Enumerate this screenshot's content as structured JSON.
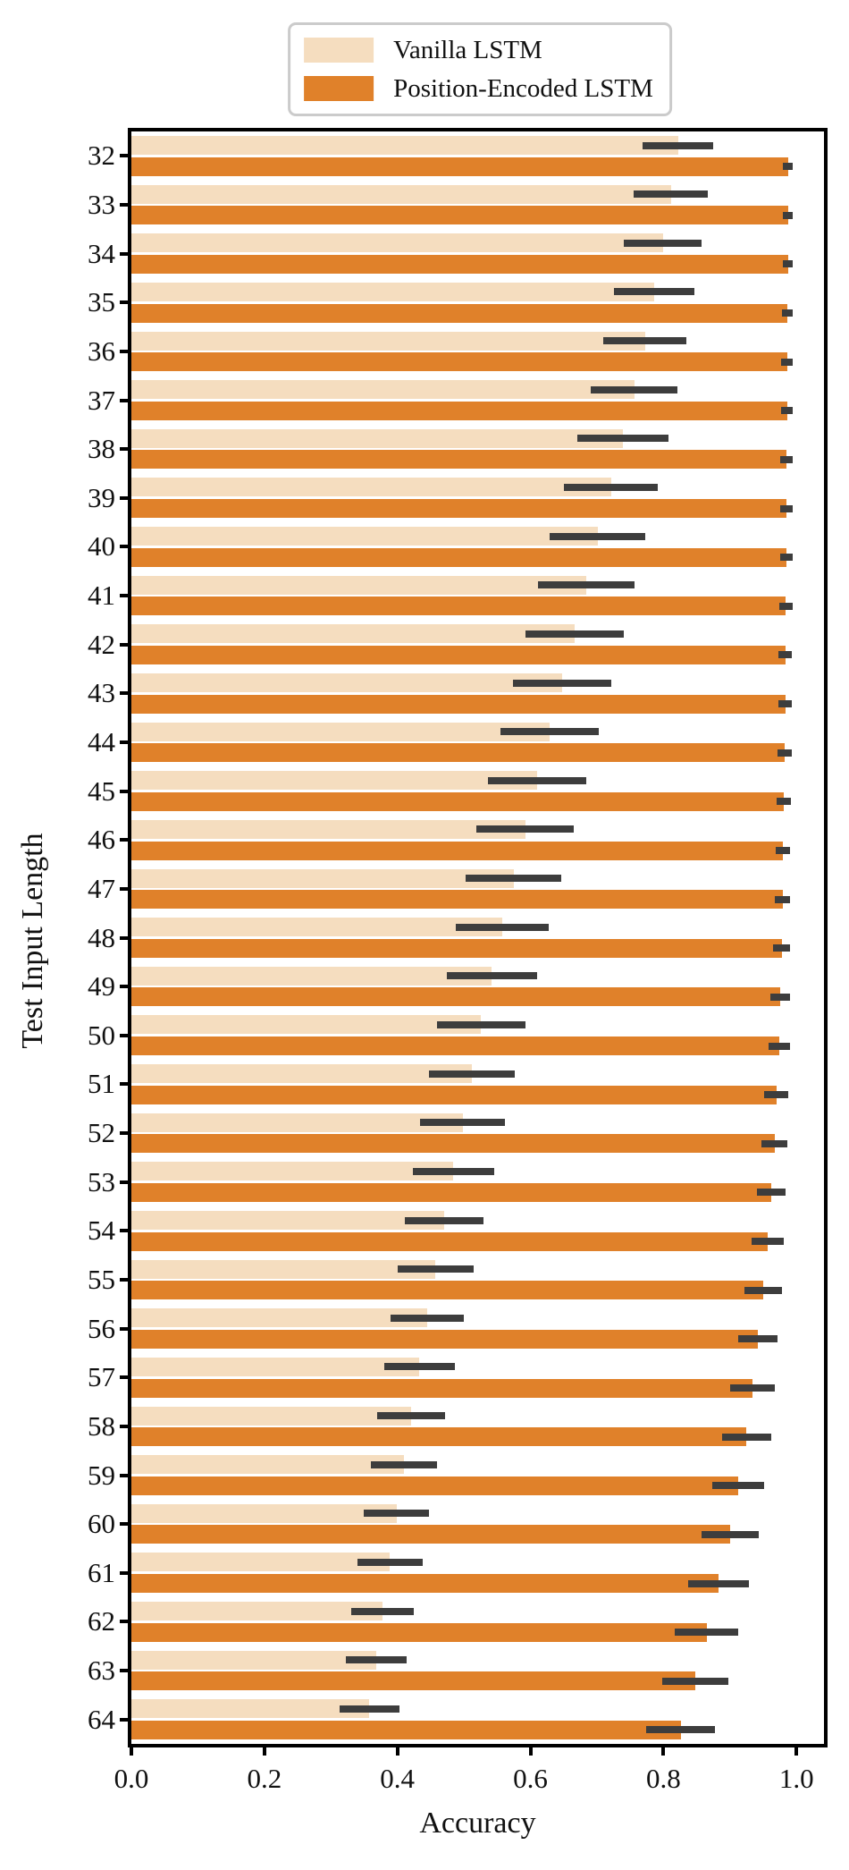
{
  "figure": {
    "background": "#ffffff",
    "spine_color": "#000000"
  },
  "chart_data": {
    "type": "bar",
    "orientation": "horizontal",
    "title": "",
    "xlabel": "Accuracy",
    "ylabel": "Test Input Length",
    "xlim": [
      0,
      1.0414
    ],
    "xticks": [
      0.0,
      0.2,
      0.4,
      0.6,
      0.8,
      1.0
    ],
    "xtick_labels": [
      "0.0",
      "0.2",
      "0.4",
      "0.6",
      "0.8",
      "1.0"
    ],
    "grid": false,
    "legend_position": "top-center-above-axes",
    "error_color": "#3d3d3d",
    "categories": [
      "32",
      "33",
      "34",
      "35",
      "36",
      "37",
      "38",
      "39",
      "40",
      "41",
      "42",
      "43",
      "44",
      "45",
      "46",
      "47",
      "48",
      "49",
      "50",
      "51",
      "52",
      "53",
      "54",
      "55",
      "56",
      "57",
      "58",
      "59",
      "60",
      "61",
      "62",
      "63",
      "64"
    ],
    "series": [
      {
        "name": "Vanilla LSTM",
        "color": "#f5ddbf",
        "values": [
          0.822,
          0.811,
          0.799,
          0.786,
          0.772,
          0.756,
          0.739,
          0.721,
          0.701,
          0.684,
          0.666,
          0.648,
          0.629,
          0.61,
          0.592,
          0.575,
          0.558,
          0.542,
          0.526,
          0.512,
          0.498,
          0.484,
          0.47,
          0.457,
          0.445,
          0.433,
          0.421,
          0.41,
          0.399,
          0.389,
          0.378,
          0.368,
          0.358
        ],
        "errors": [
          0.053,
          0.056,
          0.058,
          0.061,
          0.063,
          0.065,
          0.068,
          0.07,
          0.072,
          0.073,
          0.074,
          0.074,
          0.074,
          0.074,
          0.073,
          0.072,
          0.07,
          0.068,
          0.067,
          0.065,
          0.064,
          0.061,
          0.059,
          0.057,
          0.055,
          0.053,
          0.051,
          0.05,
          0.049,
          0.049,
          0.047,
          0.046,
          0.045
        ]
      },
      {
        "name": "Position-Encoded LSTM",
        "color": "#e0812a",
        "values": [
          0.987,
          0.987,
          0.987,
          0.986,
          0.986,
          0.986,
          0.985,
          0.985,
          0.985,
          0.984,
          0.983,
          0.983,
          0.982,
          0.981,
          0.98,
          0.979,
          0.978,
          0.976,
          0.974,
          0.97,
          0.967,
          0.962,
          0.957,
          0.95,
          0.942,
          0.934,
          0.925,
          0.913,
          0.9,
          0.883,
          0.865,
          0.848,
          0.826
        ],
        "errors": [
          0.008,
          0.008,
          0.008,
          0.008,
          0.009,
          0.009,
          0.009,
          0.009,
          0.01,
          0.01,
          0.01,
          0.01,
          0.011,
          0.011,
          0.011,
          0.012,
          0.013,
          0.015,
          0.016,
          0.018,
          0.019,
          0.022,
          0.024,
          0.028,
          0.03,
          0.034,
          0.037,
          0.039,
          0.043,
          0.046,
          0.048,
          0.05,
          0.052
        ]
      }
    ]
  }
}
